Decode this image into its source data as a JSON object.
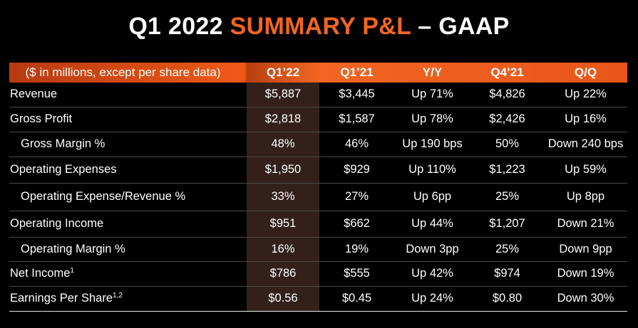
{
  "title": {
    "part1": "Q1 2022 ",
    "accent": "SUMMARY P&L",
    "part2": " – GAAP"
  },
  "colors": {
    "accent": "#f26522",
    "highlight_column": "#33201a",
    "background": "#000000"
  },
  "table": {
    "headers": [
      "($ in millions, except per share data)",
      "Q1’22",
      "Q1’21",
      "Y/Y",
      "Q4’21",
      "Q/Q"
    ],
    "rows": [
      {
        "label": "Revenue",
        "sup": "",
        "indent": false,
        "values": [
          "$5,887",
          "$3,445",
          "Up 71%",
          "$4,826",
          "Up 22%"
        ]
      },
      {
        "label": "Gross Profit",
        "sup": "",
        "indent": false,
        "values": [
          "$2,818",
          "$1,587",
          "Up 78%",
          "$2,426",
          "Up 16%"
        ]
      },
      {
        "label": "Gross Margin %",
        "sup": "",
        "indent": true,
        "values": [
          "48%",
          "46%",
          "Up 190 bps",
          "50%",
          "Down 240 bps"
        ]
      },
      {
        "label": "Operating Expenses",
        "sup": "",
        "indent": false,
        "values": [
          "$1,950",
          "$929",
          "Up 110%",
          "$1,223",
          "Up 59%"
        ]
      },
      {
        "label": "Operating Expense/Revenue %",
        "sup": "",
        "indent": true,
        "values": [
          "33%",
          "27%",
          "Up 6pp",
          "25%",
          "Up 8pp"
        ]
      },
      {
        "label": "Operating Income",
        "sup": "",
        "indent": false,
        "values": [
          "$951",
          "$662",
          "Up 44%",
          "$1,207",
          "Down 21%"
        ]
      },
      {
        "label": "Operating Margin %",
        "sup": "",
        "indent": true,
        "values": [
          "16%",
          "19%",
          "Down 3pp",
          "25%",
          "Down 9pp"
        ]
      },
      {
        "label": "Net Income",
        "sup": "1",
        "indent": false,
        "values": [
          "$786",
          "$555",
          "Up 42%",
          "$974",
          "Down 19%"
        ]
      },
      {
        "label": "Earnings Per Share",
        "sup": "1,2",
        "indent": false,
        "values": [
          "$0.56",
          "$0.45",
          "Up 24%",
          "$0.80",
          "Down 30%"
        ]
      }
    ]
  }
}
